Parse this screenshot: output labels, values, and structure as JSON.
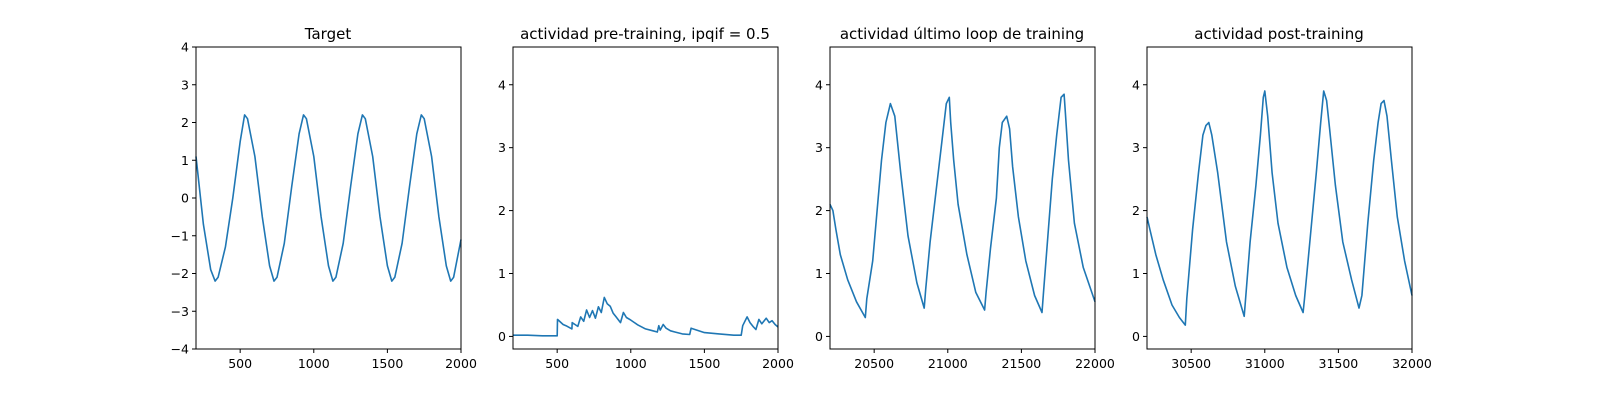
{
  "figure": {
    "line_color": "#1f77b4"
  },
  "chart_data": [
    {
      "type": "line",
      "title": "Target",
      "xlim": [
        200,
        2000
      ],
      "ylim": [
        -4,
        4
      ],
      "xticks": [
        500,
        1000,
        1500,
        2000
      ],
      "yticks": [
        -4,
        -3,
        -2,
        -1,
        0,
        1,
        2,
        3,
        4
      ],
      "grid": false,
      "series": [
        {
          "x": [
            200,
            250,
            300,
            330,
            350,
            400,
            450,
            500,
            530,
            550,
            600,
            650,
            700,
            730,
            750,
            800,
            850,
            900,
            930,
            950,
            1000,
            1050,
            1100,
            1130,
            1150,
            1200,
            1250,
            1300,
            1330,
            1350,
            1400,
            1450,
            1500,
            1530,
            1550,
            1600,
            1650,
            1700,
            1730,
            1750,
            1800,
            1850,
            1900,
            1930,
            1950,
            2000
          ],
          "y": [
            1.1,
            -0.7,
            -1.9,
            -2.2,
            -2.1,
            -1.3,
            0.0,
            1.5,
            2.2,
            2.1,
            1.1,
            -0.5,
            -1.8,
            -2.2,
            -2.1,
            -1.2,
            0.3,
            1.7,
            2.2,
            2.1,
            1.1,
            -0.5,
            -1.8,
            -2.2,
            -2.1,
            -1.2,
            0.3,
            1.7,
            2.2,
            2.1,
            1.1,
            -0.5,
            -1.8,
            -2.2,
            -2.1,
            -1.2,
            0.3,
            1.7,
            2.2,
            2.1,
            1.1,
            -0.5,
            -1.8,
            -2.2,
            -2.1,
            -1.1
          ]
        }
      ]
    },
    {
      "type": "line",
      "title": "actividad pre-training, ipqif = 0.5",
      "xlim": [
        200,
        2000
      ],
      "ylim": [
        -0.2,
        4.6
      ],
      "xticks": [
        500,
        1000,
        1500,
        2000
      ],
      "yticks": [
        0,
        1,
        2,
        3,
        4
      ],
      "grid": false,
      "series": [
        {
          "x": [
            200,
            300,
            400,
            480,
            500,
            502,
            540,
            560,
            600,
            602,
            640,
            660,
            680,
            700,
            720,
            740,
            760,
            780,
            800,
            820,
            840,
            860,
            880,
            900,
            930,
            950,
            970,
            1000,
            1050,
            1100,
            1150,
            1180,
            1190,
            1200,
            1220,
            1240,
            1270,
            1300,
            1350,
            1400,
            1410,
            1500,
            1600,
            1700,
            1750,
            1760,
            1790,
            1810,
            1830,
            1850,
            1870,
            1890,
            1920,
            1940,
            1960,
            1980,
            2000
          ],
          "y": [
            0.02,
            0.02,
            0.01,
            0.01,
            0.01,
            0.27,
            0.19,
            0.17,
            0.12,
            0.22,
            0.16,
            0.31,
            0.24,
            0.42,
            0.3,
            0.41,
            0.29,
            0.47,
            0.38,
            0.62,
            0.52,
            0.48,
            0.37,
            0.31,
            0.22,
            0.38,
            0.3,
            0.26,
            0.18,
            0.12,
            0.09,
            0.07,
            0.17,
            0.1,
            0.19,
            0.13,
            0.09,
            0.07,
            0.04,
            0.03,
            0.13,
            0.06,
            0.04,
            0.02,
            0.02,
            0.17,
            0.31,
            0.22,
            0.16,
            0.11,
            0.27,
            0.2,
            0.29,
            0.22,
            0.25,
            0.19,
            0.15
          ]
        }
      ]
    },
    {
      "type": "line",
      "title": "actividad último loop de training",
      "xlim": [
        20200,
        22000
      ],
      "ylim": [
        -0.2,
        4.6
      ],
      "xticks": [
        20500,
        21000,
        21500,
        22000
      ],
      "yticks": [
        0,
        1,
        2,
        3,
        4
      ],
      "grid": false,
      "series": [
        {
          "x": [
            20200,
            20220,
            20240,
            20270,
            20320,
            20380,
            20440,
            20450,
            20490,
            20520,
            20550,
            20580,
            20610,
            20640,
            20680,
            20730,
            20790,
            20840,
            20850,
            20880,
            20920,
            20960,
            20990,
            21010,
            21020,
            21040,
            21070,
            21130,
            21190,
            21250,
            21260,
            21290,
            21330,
            21350,
            21370,
            21400,
            21420,
            21440,
            21480,
            21530,
            21590,
            21640,
            21650,
            21680,
            21710,
            21740,
            21770,
            21790,
            21800,
            21820,
            21860,
            21920,
            22000
          ],
          "y": [
            2.1,
            2.0,
            1.7,
            1.3,
            0.9,
            0.55,
            0.3,
            0.6,
            1.2,
            2.0,
            2.8,
            3.4,
            3.7,
            3.5,
            2.6,
            1.6,
            0.85,
            0.45,
            0.75,
            1.5,
            2.3,
            3.1,
            3.7,
            3.8,
            3.4,
            2.8,
            2.1,
            1.3,
            0.7,
            0.42,
            0.7,
            1.4,
            2.2,
            3.0,
            3.4,
            3.5,
            3.3,
            2.7,
            1.9,
            1.2,
            0.65,
            0.38,
            0.7,
            1.6,
            2.5,
            3.2,
            3.8,
            3.85,
            3.5,
            2.8,
            1.8,
            1.1,
            0.55
          ]
        }
      ]
    },
    {
      "type": "line",
      "title": "actividad post-training",
      "xlim": [
        30200,
        32000
      ],
      "ylim": [
        -0.2,
        4.6
      ],
      "xticks": [
        30500,
        31000,
        31500,
        32000
      ],
      "yticks": [
        0,
        1,
        2,
        3,
        4
      ],
      "grid": false,
      "series": [
        {
          "x": [
            30200,
            30220,
            30260,
            30310,
            30370,
            30420,
            30460,
            30470,
            30510,
            30550,
            30580,
            30600,
            30620,
            30640,
            30680,
            30740,
            30800,
            30860,
            30870,
            30900,
            30940,
            30970,
            30990,
            31000,
            31020,
            31050,
            31090,
            31150,
            31210,
            31260,
            31270,
            31310,
            31350,
            31380,
            31400,
            31420,
            31440,
            31480,
            31530,
            31590,
            31640,
            31660,
            31700,
            31740,
            31770,
            31790,
            31810,
            31830,
            31860,
            31900,
            31950,
            32000
          ],
          "y": [
            1.9,
            1.7,
            1.3,
            0.9,
            0.5,
            0.3,
            0.18,
            0.6,
            1.7,
            2.6,
            3.2,
            3.35,
            3.4,
            3.2,
            2.6,
            1.5,
            0.8,
            0.32,
            0.6,
            1.5,
            2.4,
            3.2,
            3.8,
            3.9,
            3.5,
            2.6,
            1.8,
            1.1,
            0.65,
            0.38,
            0.6,
            1.6,
            2.6,
            3.4,
            3.9,
            3.75,
            3.3,
            2.4,
            1.5,
            0.9,
            0.45,
            0.65,
            1.8,
            2.8,
            3.4,
            3.7,
            3.75,
            3.5,
            2.8,
            1.9,
            1.2,
            0.65
          ]
        }
      ]
    }
  ]
}
